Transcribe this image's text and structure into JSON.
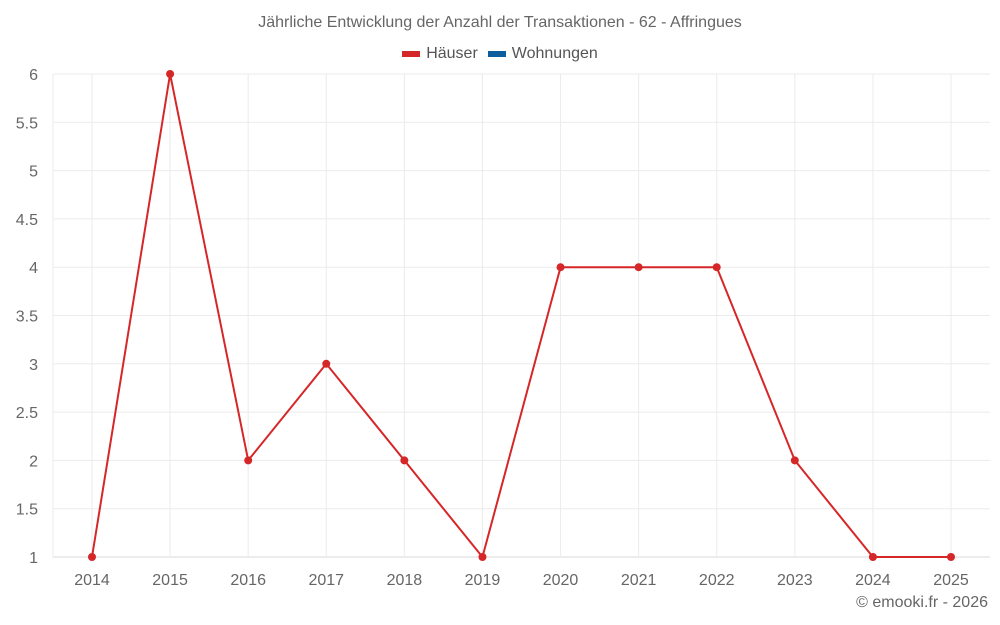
{
  "chart_data": {
    "type": "line",
    "title": "Jährliche Entwicklung der Anzahl der Transaktionen - 62 - Affringues",
    "categories": [
      "2014",
      "2015",
      "2016",
      "2017",
      "2018",
      "2019",
      "2020",
      "2021",
      "2022",
      "2023",
      "2024",
      "2025"
    ],
    "series": [
      {
        "name": "Häuser",
        "color": "#d62728",
        "values": [
          1,
          6,
          2,
          3,
          2,
          1,
          4,
          4,
          4,
          2,
          1,
          1
        ]
      },
      {
        "name": "Wohnungen",
        "color": "#0e5e9e",
        "values": []
      }
    ],
    "xlabel": "",
    "ylabel": "",
    "ylim": [
      1,
      6
    ],
    "yticks": [
      "1",
      "1.5",
      "2",
      "2.5",
      "3",
      "3.5",
      "4",
      "4.5",
      "5",
      "5.5",
      "6"
    ],
    "grid": true,
    "legend_position": "top"
  },
  "legend": {
    "items": [
      {
        "label": "Häuser",
        "color": "#d62728"
      },
      {
        "label": "Wohnungen",
        "color": "#0e5e9e"
      }
    ]
  },
  "credit": "© emooki.fr - 2026"
}
